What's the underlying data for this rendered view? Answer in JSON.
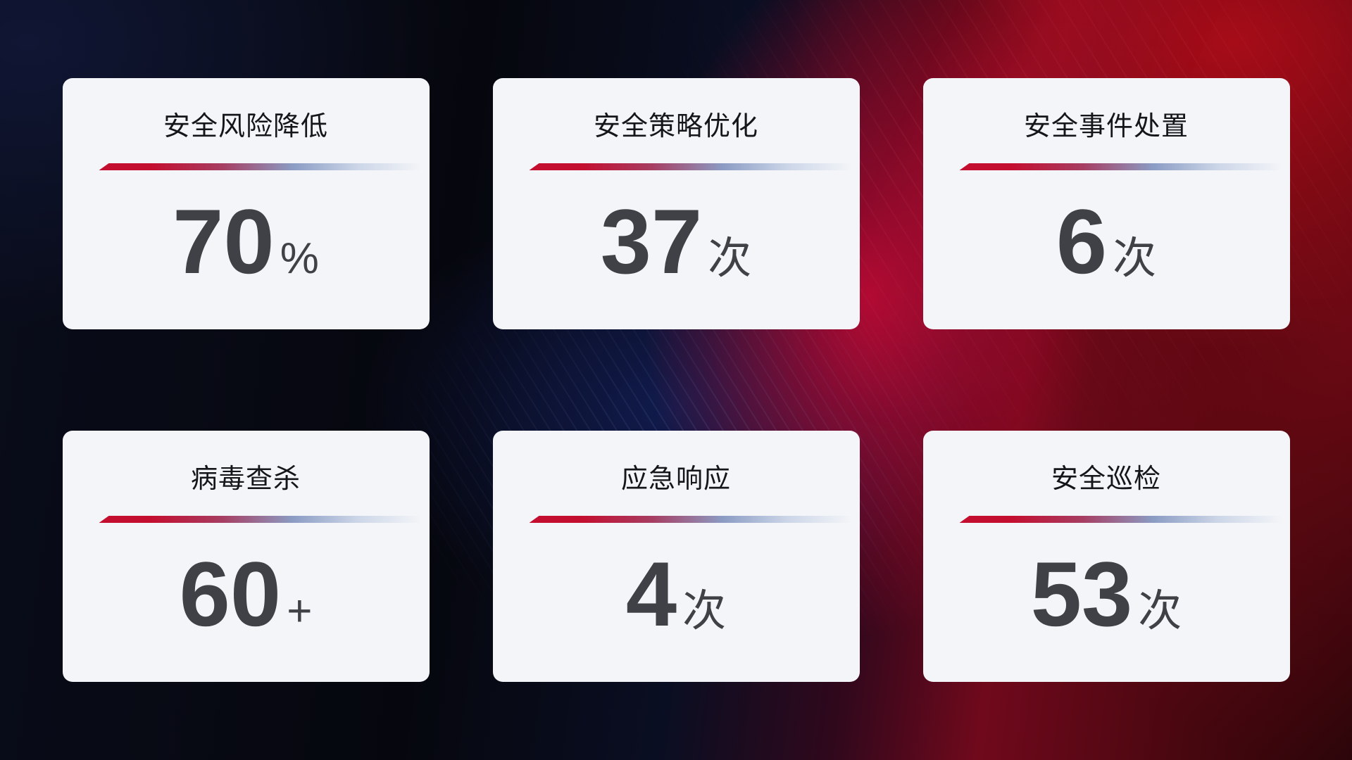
{
  "page": {
    "description": "Security operations KPI dashboard with six stat cards on a dark navy-to-crimson gradient background"
  },
  "colors": {
    "accent_red": "#c40e2f",
    "accent_blue": "#8b9cc4",
    "accent_blue_light": "#ccd6e8",
    "card_background": "#f4f5f8",
    "title_text": "#15161a",
    "number_text": "#3f4146",
    "background_navy": "#0a0e22",
    "background_red": "#a00c18"
  },
  "cards": [
    {
      "title": "安全风险降低",
      "value": "70",
      "unit": "%"
    },
    {
      "title": "安全策略优化",
      "value": "37",
      "unit": "次"
    },
    {
      "title": "安全事件处置",
      "value": "6",
      "unit": "次"
    },
    {
      "title": "病毒查杀",
      "value": "60",
      "unit": "+"
    },
    {
      "title": "应急响应",
      "value": "4",
      "unit": "次"
    },
    {
      "title": "安全巡检",
      "value": "53",
      "unit": "次"
    }
  ]
}
